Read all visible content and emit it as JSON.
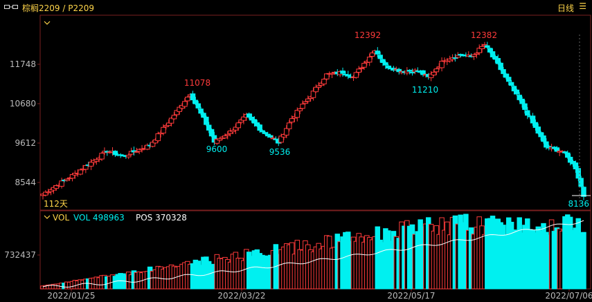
{
  "header": {
    "title": "棕榈2209 / P2209",
    "period": "日线",
    "menu_icon": "chevron-down-icon",
    "window_icon": "link-icon"
  },
  "chart_data": {
    "type": "candlestick",
    "bars_label": "112天",
    "y_ticks": [
      11748,
      10680,
      9612,
      8544
    ],
    "x_ticks": [
      "2022/01/25",
      "2022/03/22",
      "2022/05/17",
      "2022/07/06"
    ],
    "annotations": [
      {
        "text": "11078",
        "kind": "high"
      },
      {
        "text": "9600",
        "kind": "low"
      },
      {
        "text": "9536",
        "kind": "low"
      },
      {
        "text": "12392",
        "kind": "high"
      },
      {
        "text": "11210",
        "kind": "low"
      },
      {
        "text": "12382",
        "kind": "high"
      }
    ],
    "last_price": "8136",
    "volume_legend": {
      "vol": "VOL",
      "vol_value": "VOL 498963",
      "pos": "POS 370328"
    },
    "volume_tick": "732437",
    "colors": {
      "up": "#ff3b3b",
      "down": "#00f0f0",
      "high_label": "#ff3b3b",
      "low_label": "#00f0f0",
      "axis_text": "#bbbbbb",
      "title": "#ffd54a",
      "pos_line": "#ffffff"
    }
  }
}
